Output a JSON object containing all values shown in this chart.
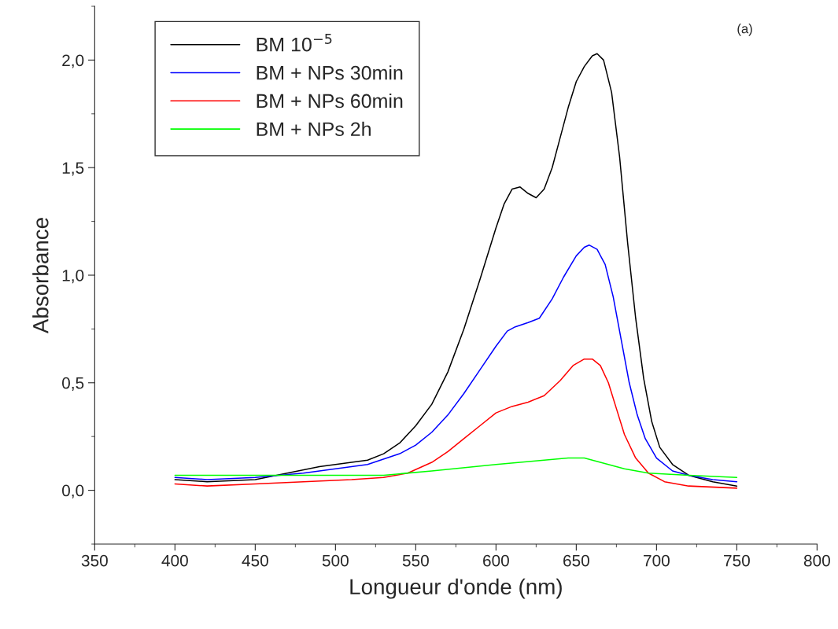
{
  "chart_data": {
    "type": "line",
    "xlabel": "Longueur d'onde (nm)",
    "ylabel": "Absorbance",
    "annotations": [
      "(a)"
    ],
    "xlim": [
      350,
      800
    ],
    "xticks": [
      350,
      400,
      450,
      500,
      550,
      600,
      650,
      700,
      750,
      800
    ],
    "ylim": [
      -0.25,
      2.25
    ],
    "yticks": [
      {
        "value": 0,
        "label": "0,0"
      },
      {
        "value": 0.5,
        "label": "0,5"
      },
      {
        "value": 1.0,
        "label": "1,0"
      },
      {
        "value": 1.5,
        "label": "1,5"
      },
      {
        "value": 2.0,
        "label": "2,0"
      }
    ],
    "grid": false,
    "legend": "top left",
    "marker": "none",
    "line_style": "solid",
    "series": [
      {
        "name": "BM 10$^{−5}$",
        "color": "#000000",
        "x": [
          400,
          420,
          450,
          470,
          490,
          500,
          520,
          530,
          540,
          550,
          560,
          570,
          580,
          590,
          600,
          605,
          610,
          615,
          620,
          625,
          630,
          635,
          640,
          645,
          650,
          655,
          660,
          663,
          667,
          672,
          677,
          682,
          687,
          692,
          697,
          702,
          710,
          720,
          735,
          750
        ],
        "values": [
          0.05,
          0.04,
          0.05,
          0.08,
          0.11,
          0.12,
          0.14,
          0.17,
          0.22,
          0.3,
          0.4,
          0.55,
          0.75,
          0.98,
          1.22,
          1.33,
          1.4,
          1.41,
          1.38,
          1.36,
          1.4,
          1.5,
          1.64,
          1.78,
          1.9,
          1.97,
          2.02,
          2.03,
          2.0,
          1.85,
          1.55,
          1.15,
          0.8,
          0.52,
          0.32,
          0.2,
          0.12,
          0.07,
          0.04,
          0.02
        ]
      },
      {
        "name": "BM + NPs 30min",
        "color": "#0000ff",
        "x": [
          400,
          420,
          450,
          480,
          500,
          520,
          540,
          550,
          560,
          570,
          580,
          590,
          600,
          607,
          612,
          620,
          627,
          635,
          642,
          650,
          655,
          658,
          663,
          668,
          673,
          678,
          683,
          688,
          693,
          700,
          710,
          720,
          735,
          750
        ],
        "values": [
          0.06,
          0.05,
          0.06,
          0.08,
          0.1,
          0.12,
          0.17,
          0.21,
          0.27,
          0.35,
          0.45,
          0.56,
          0.67,
          0.74,
          0.76,
          0.78,
          0.8,
          0.89,
          0.99,
          1.09,
          1.13,
          1.14,
          1.12,
          1.05,
          0.9,
          0.7,
          0.5,
          0.35,
          0.24,
          0.15,
          0.09,
          0.07,
          0.05,
          0.04
        ]
      },
      {
        "name": "BM + NPs 60min",
        "color": "#ff0000",
        "x": [
          400,
          420,
          450,
          480,
          510,
          530,
          545,
          560,
          570,
          580,
          590,
          600,
          610,
          620,
          630,
          640,
          648,
          655,
          660,
          665,
          670,
          675,
          680,
          687,
          695,
          705,
          720,
          750
        ],
        "values": [
          0.03,
          0.02,
          0.03,
          0.04,
          0.05,
          0.06,
          0.08,
          0.13,
          0.18,
          0.24,
          0.3,
          0.36,
          0.39,
          0.41,
          0.44,
          0.51,
          0.58,
          0.61,
          0.61,
          0.58,
          0.5,
          0.38,
          0.26,
          0.15,
          0.08,
          0.04,
          0.02,
          0.01
        ]
      },
      {
        "name": "BM + NPs 2h",
        "color": "#00ff00",
        "x": [
          400,
          450,
          500,
          530,
          560,
          600,
          630,
          645,
          655,
          665,
          680,
          695,
          720,
          750
        ],
        "values": [
          0.07,
          0.07,
          0.07,
          0.07,
          0.09,
          0.12,
          0.14,
          0.15,
          0.15,
          0.13,
          0.1,
          0.08,
          0.07,
          0.06
        ]
      }
    ]
  }
}
